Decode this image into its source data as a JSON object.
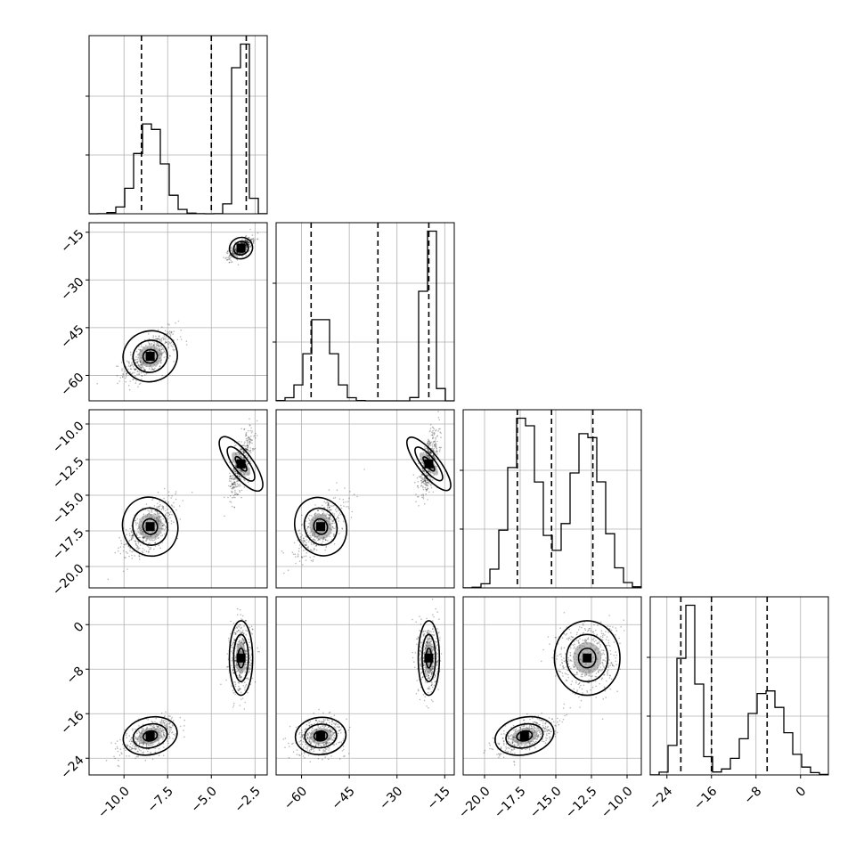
{
  "chart_data": {
    "type": "corner",
    "parameters": [
      {
        "ticks": [
          -10.0,
          -7.5,
          -5.0,
          -2.5
        ],
        "tick_labels": [
          "−10.0",
          "−7.5",
          "−5.0",
          "−2.5"
        ],
        "range": [
          -12.0,
          -1.8
        ],
        "quantiles": [
          -9.0,
          -5.0,
          -3.0
        ],
        "clusters": [
          {
            "mean": -8.5,
            "sd": 0.75,
            "weight": 0.5
          },
          {
            "mean": -3.3,
            "sd": 0.32,
            "weight": 0.5
          }
        ]
      },
      {
        "ticks": [
          -60,
          -45,
          -30,
          -15
        ],
        "tick_labels": [
          "−60",
          "−45",
          "−30",
          "−15"
        ],
        "range": [
          -68,
          -12
        ],
        "quantiles": [
          -57,
          -36,
          -20
        ],
        "clusters": [
          {
            "mean": -54,
            "sd": 3.8,
            "weight": 0.5
          },
          {
            "mean": -20,
            "sd": 1.6,
            "weight": 0.5
          }
        ]
      },
      {
        "ticks": [
          -10.0,
          -12.5,
          -15.0,
          -17.5,
          -20.0
        ],
        "tick_labels": [
          "−10.0",
          "−12.5",
          "−15.0",
          "−17.5",
          "−20.0"
        ],
        "range": [
          -21.5,
          -9.0
        ],
        "quantiles": [
          -17.7,
          -15.3,
          -12.4
        ],
        "clusters": [
          {
            "mean": -17.2,
            "sd": 1.0,
            "weight": 0.5
          },
          {
            "mean": -12.8,
            "sd": 1.1,
            "weight": 0.5
          }
        ]
      },
      {
        "ticks": [
          0,
          -8,
          -16,
          -24
        ],
        "tick_labels": [
          "0",
          "−8",
          "−16",
          "−24"
        ],
        "range": [
          -27,
          5
        ],
        "quantiles": [
          -21.5,
          -16,
          -6
        ],
        "clusters": [
          {
            "mean": -20,
            "sd": 1.6,
            "weight": 0.5
          },
          {
            "mean": -6,
            "sd": 3.2,
            "weight": 0.5
          }
        ]
      }
    ],
    "contour_levels": [
      "1-sigma",
      "2-sigma",
      "3-sigma"
    ]
  }
}
